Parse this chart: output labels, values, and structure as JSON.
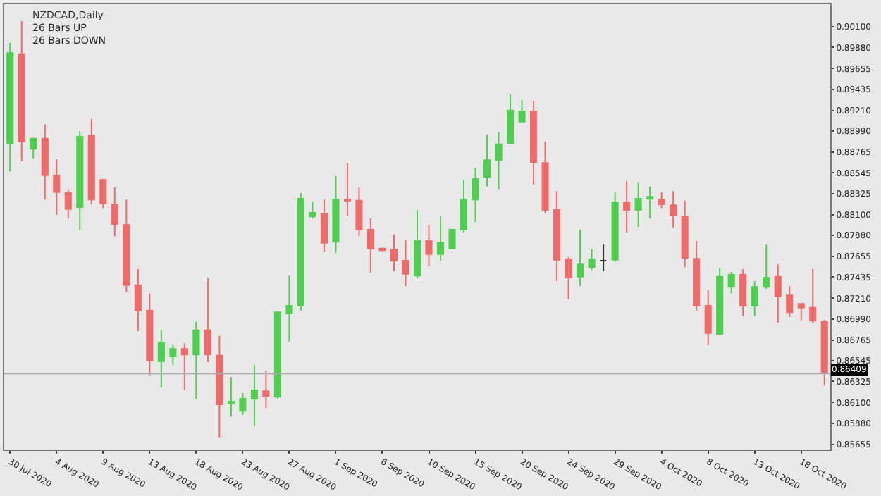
{
  "chart_data": {
    "type": "candlestick",
    "title": "NZDCAD,Daily",
    "annotations": [
      "26 Bars UP",
      "26 Bars DOWN"
    ],
    "categories": [
      "30 Jul 2020",
      null,
      null,
      null,
      "4 Aug 2020",
      null,
      null,
      null,
      "9 Aug 2020",
      null,
      null,
      null,
      "13 Aug 2020",
      null,
      null,
      null,
      "18 Aug 2020",
      null,
      null,
      null,
      "23 Aug 2020",
      null,
      null,
      null,
      "27 Aug 2020",
      null,
      null,
      null,
      "1 Sep 2020",
      null,
      null,
      null,
      "6 Sep 2020",
      null,
      null,
      null,
      "10 Sep 2020",
      null,
      null,
      null,
      "15 Sep 2020",
      null,
      null,
      null,
      "20 Sep 2020",
      null,
      null,
      null,
      "24 Sep 2020",
      null,
      null,
      null,
      "29 Sep 2020",
      null,
      null,
      null,
      "4 Oct 2020",
      null,
      null,
      null,
      "8 Oct 2020",
      null,
      null,
      null,
      "13 Oct 2020",
      null,
      null,
      null,
      "18 Oct 2020",
      null,
      null
    ],
    "ohlc": [
      [
        0.8886,
        0.8993,
        0.8856,
        0.8982
      ],
      [
        0.8981,
        0.9016,
        0.8867,
        0.8888
      ],
      [
        0.888,
        0.8891,
        0.887,
        0.8891
      ],
      [
        0.8891,
        0.8906,
        0.8826,
        0.8852
      ],
      [
        0.8852,
        0.8869,
        0.881,
        0.8834
      ],
      [
        0.8833,
        0.8837,
        0.8806,
        0.8816
      ],
      [
        0.8818,
        0.8899,
        0.8794,
        0.8893
      ],
      [
        0.8894,
        0.8912,
        0.8821,
        0.8826
      ],
      [
        0.8847,
        0.8848,
        0.8817,
        0.8822
      ],
      [
        0.8821,
        0.8839,
        0.8787,
        0.88
      ],
      [
        0.8799,
        0.8826,
        0.8728,
        0.8735
      ],
      [
        0.8735,
        0.8752,
        0.8686,
        0.8708
      ],
      [
        0.8708,
        0.8726,
        0.8639,
        0.8655
      ],
      [
        0.8654,
        0.8687,
        0.8626,
        0.8674
      ],
      [
        0.8659,
        0.8672,
        0.865,
        0.8667
      ],
      [
        0.8667,
        0.8673,
        0.8623,
        0.8661
      ],
      [
        0.8661,
        0.8696,
        0.8614,
        0.8687
      ],
      [
        0.8687,
        0.8743,
        0.8653,
        0.8661
      ],
      [
        0.866,
        0.8681,
        0.8573,
        0.8608
      ],
      [
        0.8609,
        0.8637,
        0.8595,
        0.8611
      ],
      [
        0.8601,
        0.862,
        0.8597,
        0.8614
      ],
      [
        0.8614,
        0.865,
        0.8585,
        0.8623
      ],
      [
        0.8622,
        0.8644,
        0.8604,
        0.8617
      ],
      [
        0.8616,
        0.8706,
        0.8614,
        0.8706
      ],
      [
        0.8705,
        0.8745,
        0.8675,
        0.8713
      ],
      [
        0.8713,
        0.8833,
        0.8708,
        0.8827
      ],
      [
        0.8808,
        0.8824,
        0.8806,
        0.8812
      ],
      [
        0.8811,
        0.8826,
        0.877,
        0.878
      ],
      [
        0.8781,
        0.8851,
        0.8769,
        0.8826
      ],
      [
        0.8826,
        0.8865,
        0.8809,
        0.8825
      ],
      [
        0.8825,
        0.8839,
        0.8787,
        0.8794
      ],
      [
        0.8794,
        0.8806,
        0.8748,
        0.8774
      ],
      [
        0.8774,
        0.8775,
        0.8771,
        0.8772
      ],
      [
        0.8773,
        0.8789,
        0.875,
        0.8761
      ],
      [
        0.8761,
        0.8783,
        0.8734,
        0.8747
      ],
      [
        0.8745,
        0.8815,
        0.8742,
        0.8782
      ],
      [
        0.8782,
        0.8799,
        0.8755,
        0.8768
      ],
      [
        0.8768,
        0.8808,
        0.8761,
        0.878
      ],
      [
        0.8774,
        0.8795,
        0.8773,
        0.8794
      ],
      [
        0.8794,
        0.8847,
        0.8791,
        0.8826
      ],
      [
        0.8826,
        0.886,
        0.8802,
        0.8848
      ],
      [
        0.885,
        0.8895,
        0.884,
        0.8868
      ],
      [
        0.8868,
        0.8898,
        0.8837,
        0.8885
      ],
      [
        0.8886,
        0.8938,
        0.8885,
        0.8921
      ],
      [
        0.8909,
        0.8932,
        0.8909,
        0.892
      ],
      [
        0.892,
        0.8931,
        0.8842,
        0.8866
      ],
      [
        0.8865,
        0.8888,
        0.8811,
        0.8815
      ],
      [
        0.8815,
        0.8835,
        0.8739,
        0.8762
      ],
      [
        0.8762,
        0.8765,
        0.872,
        0.8743
      ],
      [
        0.8744,
        0.8794,
        0.8734,
        0.8757
      ],
      [
        0.8754,
        0.8773,
        0.8751,
        0.8762
      ],
      [
        0.8761,
        0.8778,
        0.875,
        0.8761
      ],
      [
        0.8762,
        0.8834,
        0.876,
        0.8823
      ],
      [
        0.8823,
        0.8846,
        0.8791,
        0.8815
      ],
      [
        0.8815,
        0.8844,
        0.8797,
        0.8827
      ],
      [
        0.8827,
        0.884,
        0.8806,
        0.8829
      ],
      [
        0.8826,
        0.8834,
        0.8817,
        0.8821
      ],
      [
        0.882,
        0.8835,
        0.8796,
        0.8809
      ],
      [
        0.8808,
        0.8825,
        0.8754,
        0.8764
      ],
      [
        0.8763,
        0.8782,
        0.8708,
        0.8713
      ],
      [
        0.8713,
        0.873,
        0.8671,
        0.8684
      ],
      [
        0.8683,
        0.8753,
        0.8682,
        0.8744
      ],
      [
        0.8733,
        0.8749,
        0.8726,
        0.8746
      ],
      [
        0.8746,
        0.8752,
        0.8702,
        0.8713
      ],
      [
        0.8713,
        0.8739,
        0.8702,
        0.8733
      ],
      [
        0.8733,
        0.8778,
        0.8731,
        0.8743
      ],
      [
        0.8744,
        0.8757,
        0.8695,
        0.8723
      ],
      [
        0.8724,
        0.8734,
        0.8701,
        0.8706
      ],
      [
        0.8715,
        0.8716,
        0.8697,
        0.8711
      ],
      [
        0.8711,
        0.8752,
        0.8695,
        0.8697
      ],
      [
        0.8696,
        0.8698,
        0.8628,
        0.8641
      ]
    ],
    "colors": [
      "#4fcf4f",
      "#ef6a6a",
      "#4fcf4f",
      "#ef6a6a",
      "#ef6a6a",
      "#ef6a6a",
      "#4fcf4f",
      "#ef6a6a",
      "#ef6a6a",
      "#ef6a6a",
      "#ef6a6a",
      "#ef6a6a",
      "#ef6a6a",
      "#4fcf4f",
      "#4fcf4f",
      "#ef6a6a",
      "#4fcf4f",
      "#ef6a6a",
      "#ef6a6a",
      "#4fcf4f",
      "#4fcf4f",
      "#4fcf4f",
      "#ef6a6a",
      "#4fcf4f",
      "#4fcf4f",
      "#4fcf4f",
      "#4fcf4f",
      "#ef6a6a",
      "#4fcf4f",
      "#ef6a6a",
      "#ef6a6a",
      "#ef6a6a",
      "#ef6a6a",
      "#ef6a6a",
      "#ef6a6a",
      "#4fcf4f",
      "#ef6a6a",
      "#4fcf4f",
      "#4fcf4f",
      "#4fcf4f",
      "#4fcf4f",
      "#4fcf4f",
      "#4fcf4f",
      "#4fcf4f",
      "#4fcf4f",
      "#ef6a6a",
      "#ef6a6a",
      "#ef6a6a",
      "#ef6a6a",
      "#4fcf4f",
      "#4fcf4f",
      "#333333",
      "#4fcf4f",
      "#ef6a6a",
      "#4fcf4f",
      "#4fcf4f",
      "#ef6a6a",
      "#ef6a6a",
      "#ef6a6a",
      "#ef6a6a",
      "#ef6a6a",
      "#4fcf4f",
      "#4fcf4f",
      "#ef6a6a",
      "#4fcf4f",
      "#4fcf4f",
      "#ef6a6a",
      "#ef6a6a",
      "#ef6a6a",
      "#ef6a6a",
      "#ef6a6a"
    ],
    "ylim": [
      0.856,
      0.9034
    ],
    "yticks": [
      {
        "value": 0.901,
        "label": "0.90100"
      },
      {
        "value": 0.8988,
        "label": "0.89880"
      },
      {
        "value": 0.89655,
        "label": "0.89655"
      },
      {
        "value": 0.89435,
        "label": "0.89435"
      },
      {
        "value": 0.8921,
        "label": "0.89210"
      },
      {
        "value": 0.8899,
        "label": "0.88990"
      },
      {
        "value": 0.88765,
        "label": "0.88765"
      },
      {
        "value": 0.88545,
        "label": "0.88545"
      },
      {
        "value": 0.88325,
        "label": "0.88325"
      },
      {
        "value": 0.881,
        "label": "0.88100"
      },
      {
        "value": 0.8788,
        "label": "0.87880"
      },
      {
        "value": 0.87655,
        "label": "0.87655"
      },
      {
        "value": 0.87435,
        "label": "0.87435"
      },
      {
        "value": 0.8721,
        "label": "0.87210"
      },
      {
        "value": 0.8699,
        "label": "0.86990"
      },
      {
        "value": 0.86765,
        "label": "0.86765"
      },
      {
        "value": 0.86545,
        "label": "0.86545"
      },
      {
        "value": 0.86325,
        "label": "0.86325"
      },
      {
        "value": 0.861,
        "label": "0.86100"
      },
      {
        "value": 0.8588,
        "label": "0.85880"
      },
      {
        "value": 0.85655,
        "label": "0.85655"
      }
    ],
    "ref_lines": [
      {
        "axis": "y",
        "value": 0.86409,
        "label": "0.86409",
        "color": "#a8a8a8"
      }
    ],
    "grid": false
  }
}
